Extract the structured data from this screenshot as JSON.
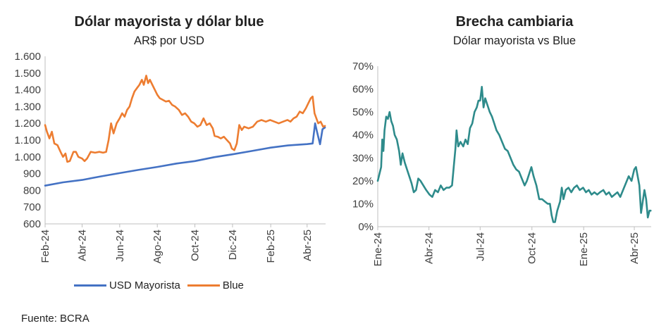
{
  "source": "Fuente: BCRA",
  "chart_data": [
    {
      "type": "line",
      "title": "Dólar mayorista y dólar blue",
      "subtitle": "AR$ por USD",
      "ylim": [
        600,
        1600
      ],
      "yticks": [
        "600",
        "700",
        "800",
        "900",
        "1.000",
        "1.100",
        "1.200",
        "1.300",
        "1.400",
        "1.500",
        "1.600"
      ],
      "xticks": [
        "Feb-24",
        "Abr-24",
        "Jun-24",
        "Ago-24",
        "Oct-24",
        "Dic-24",
        "Feb-25",
        "Abr-25"
      ],
      "xtick_dates": [
        "2024-02-01",
        "2024-04-01",
        "2024-06-01",
        "2024-08-01",
        "2024-10-01",
        "2024-12-01",
        "2025-02-01",
        "2025-04-01"
      ],
      "xlim": [
        "2024-02-01",
        "2025-05-01"
      ],
      "legend_position": "bottom",
      "series": [
        {
          "name": "USD Mayorista",
          "color": "#4472C4",
          "points": [
            [
              "2024-02-01",
              828
            ],
            [
              "2024-03-01",
              848
            ],
            [
              "2024-04-01",
              862
            ],
            [
              "2024-05-01",
              883
            ],
            [
              "2024-06-01",
              903
            ],
            [
              "2024-07-01",
              922
            ],
            [
              "2024-08-01",
              940
            ],
            [
              "2024-09-01",
              960
            ],
            [
              "2024-10-01",
              975
            ],
            [
              "2024-11-01",
              998
            ],
            [
              "2024-12-01",
              1015
            ],
            [
              "2025-01-01",
              1035
            ],
            [
              "2025-02-01",
              1055
            ],
            [
              "2025-03-01",
              1068
            ],
            [
              "2025-04-01",
              1076
            ],
            [
              "2025-04-10",
              1080
            ],
            [
              "2025-04-14",
              1200
            ],
            [
              "2025-04-17",
              1150
            ],
            [
              "2025-04-22",
              1075
            ],
            [
              "2025-04-26",
              1165
            ],
            [
              "2025-04-30",
              1175
            ]
          ]
        },
        {
          "name": "Blue",
          "color": "#ED7D31",
          "points": [
            [
              "2024-02-01",
              1190
            ],
            [
              "2024-02-04",
              1150
            ],
            [
              "2024-02-08",
              1110
            ],
            [
              "2024-02-12",
              1150
            ],
            [
              "2024-02-16",
              1080
            ],
            [
              "2024-02-21",
              1070
            ],
            [
              "2024-02-26",
              1030
            ],
            [
              "2024-03-01",
              1000
            ],
            [
              "2024-03-05",
              1020
            ],
            [
              "2024-03-08",
              970
            ],
            [
              "2024-03-12",
              975
            ],
            [
              "2024-03-18",
              1030
            ],
            [
              "2024-03-22",
              1030
            ],
            [
              "2024-03-26",
              1000
            ],
            [
              "2024-04-01",
              990
            ],
            [
              "2024-04-05",
              975
            ],
            [
              "2024-04-09",
              990
            ],
            [
              "2024-04-15",
              1030
            ],
            [
              "2024-04-22",
              1025
            ],
            [
              "2024-04-29",
              1030
            ],
            [
              "2024-05-05",
              1025
            ],
            [
              "2024-05-10",
              1030
            ],
            [
              "2024-05-14",
              1100
            ],
            [
              "2024-05-18",
              1200
            ],
            [
              "2024-05-22",
              1140
            ],
            [
              "2024-05-27",
              1200
            ],
            [
              "2024-06-01",
              1230
            ],
            [
              "2024-06-05",
              1260
            ],
            [
              "2024-06-09",
              1240
            ],
            [
              "2024-06-13",
              1280
            ],
            [
              "2024-06-17",
              1300
            ],
            [
              "2024-06-21",
              1350
            ],
            [
              "2024-06-25",
              1390
            ],
            [
              "2024-06-29",
              1410
            ],
            [
              "2024-07-03",
              1430
            ],
            [
              "2024-07-07",
              1460
            ],
            [
              "2024-07-10",
              1430
            ],
            [
              "2024-07-14",
              1485
            ],
            [
              "2024-07-17",
              1440
            ],
            [
              "2024-07-20",
              1460
            ],
            [
              "2024-07-24",
              1430
            ],
            [
              "2024-07-28",
              1400
            ],
            [
              "2024-08-01",
              1370
            ],
            [
              "2024-08-05",
              1350
            ],
            [
              "2024-08-10",
              1340
            ],
            [
              "2024-08-15",
              1330
            ],
            [
              "2024-08-20",
              1335
            ],
            [
              "2024-08-25",
              1310
            ],
            [
              "2024-08-30",
              1300
            ],
            [
              "2024-09-05",
              1280
            ],
            [
              "2024-09-10",
              1250
            ],
            [
              "2024-09-15",
              1260
            ],
            [
              "2024-09-20",
              1240
            ],
            [
              "2024-09-25",
              1210
            ],
            [
              "2024-09-30",
              1200
            ],
            [
              "2024-10-05",
              1180
            ],
            [
              "2024-10-10",
              1190
            ],
            [
              "2024-10-15",
              1230
            ],
            [
              "2024-10-20",
              1190
            ],
            [
              "2024-10-25",
              1200
            ],
            [
              "2024-10-30",
              1170
            ],
            [
              "2024-11-02",
              1125
            ],
            [
              "2024-11-07",
              1120
            ],
            [
              "2024-11-12",
              1110
            ],
            [
              "2024-11-17",
              1120
            ],
            [
              "2024-11-22",
              1100
            ],
            [
              "2024-11-27",
              1080
            ],
            [
              "2024-11-30",
              1050
            ],
            [
              "2024-12-04",
              1040
            ],
            [
              "2024-12-08",
              1080
            ],
            [
              "2024-12-12",
              1190
            ],
            [
              "2024-12-16",
              1160
            ],
            [
              "2024-12-20",
              1180
            ],
            [
              "2024-12-27",
              1170
            ],
            [
              "2025-01-03",
              1180
            ],
            [
              "2025-01-10",
              1210
            ],
            [
              "2025-01-17",
              1220
            ],
            [
              "2025-01-24",
              1210
            ],
            [
              "2025-01-31",
              1220
            ],
            [
              "2025-02-07",
              1210
            ],
            [
              "2025-02-14",
              1200
            ],
            [
              "2025-02-21",
              1210
            ],
            [
              "2025-02-28",
              1220
            ],
            [
              "2025-03-05",
              1210
            ],
            [
              "2025-03-10",
              1230
            ],
            [
              "2025-03-15",
              1240
            ],
            [
              "2025-03-20",
              1270
            ],
            [
              "2025-03-25",
              1260
            ],
            [
              "2025-03-30",
              1290
            ],
            [
              "2025-04-03",
              1320
            ],
            [
              "2025-04-07",
              1350
            ],
            [
              "2025-04-10",
              1360
            ],
            [
              "2025-04-13",
              1260
            ],
            [
              "2025-04-16",
              1230
            ],
            [
              "2025-04-19",
              1200
            ],
            [
              "2025-04-23",
              1210
            ],
            [
              "2025-04-27",
              1180
            ],
            [
              "2025-04-30",
              1185
            ]
          ]
        }
      ]
    },
    {
      "type": "line",
      "title": "Brecha cambiaria",
      "subtitle": "Dólar mayorista vs Blue",
      "ylim": [
        0,
        70
      ],
      "yticks": [
        "0%",
        "10%",
        "20%",
        "30%",
        "40%",
        "50%",
        "60%",
        "70%"
      ],
      "xticks": [
        "Ene-24",
        "Abr-24",
        "Jul-24",
        "Oct-24",
        "Ene-25",
        "Abr-25"
      ],
      "xtick_dates": [
        "2024-01-01",
        "2024-04-01",
        "2024-07-01",
        "2024-10-01",
        "2025-01-01",
        "2025-04-01"
      ],
      "xlim": [
        "2024-01-01",
        "2025-05-01"
      ],
      "series": [
        {
          "name": "",
          "color": "#2E8B8B",
          "points": [
            [
              "2024-01-01",
              20
            ],
            [
              "2024-01-04",
              23
            ],
            [
              "2024-01-07",
              26
            ],
            [
              "2024-01-09",
              38
            ],
            [
              "2024-01-11",
              33
            ],
            [
              "2024-01-13",
              42
            ],
            [
              "2024-01-16",
              48
            ],
            [
              "2024-01-19",
              47
            ],
            [
              "2024-01-22",
              50
            ],
            [
              "2024-01-25",
              46
            ],
            [
              "2024-01-28",
              44
            ],
            [
              "2024-01-31",
              40
            ],
            [
              "2024-02-04",
              38
            ],
            [
              "2024-02-08",
              33
            ],
            [
              "2024-02-11",
              27
            ],
            [
              "2024-02-14",
              32
            ],
            [
              "2024-02-18",
              28
            ],
            [
              "2024-02-22",
              25
            ],
            [
              "2024-02-26",
              22
            ],
            [
              "2024-03-01",
              19
            ],
            [
              "2024-03-05",
              15
            ],
            [
              "2024-03-09",
              16
            ],
            [
              "2024-03-13",
              21
            ],
            [
              "2024-03-17",
              20
            ],
            [
              "2024-03-22",
              18
            ],
            [
              "2024-03-27",
              16
            ],
            [
              "2024-04-02",
              14
            ],
            [
              "2024-04-07",
              13
            ],
            [
              "2024-04-12",
              16
            ],
            [
              "2024-04-17",
              15
            ],
            [
              "2024-04-22",
              18
            ],
            [
              "2024-04-27",
              16
            ],
            [
              "2024-05-02",
              17
            ],
            [
              "2024-05-07",
              17
            ],
            [
              "2024-05-12",
              18
            ],
            [
              "2024-05-15",
              26
            ],
            [
              "2024-05-18",
              34
            ],
            [
              "2024-05-20",
              42
            ],
            [
              "2024-05-23",
              35
            ],
            [
              "2024-05-27",
              37
            ],
            [
              "2024-06-01",
              35
            ],
            [
              "2024-06-05",
              38
            ],
            [
              "2024-06-09",
              36
            ],
            [
              "2024-06-13",
              43
            ],
            [
              "2024-06-17",
              45
            ],
            [
              "2024-06-21",
              50
            ],
            [
              "2024-06-25",
              52
            ],
            [
              "2024-06-28",
              55
            ],
            [
              "2024-07-01",
              55
            ],
            [
              "2024-07-04",
              61
            ],
            [
              "2024-07-07",
              52
            ],
            [
              "2024-07-10",
              56
            ],
            [
              "2024-07-14",
              53
            ],
            [
              "2024-07-18",
              50
            ],
            [
              "2024-07-22",
              48
            ],
            [
              "2024-07-26",
              45
            ],
            [
              "2024-07-30",
              42
            ],
            [
              "2024-08-04",
              40
            ],
            [
              "2024-08-09",
              37
            ],
            [
              "2024-08-14",
              34
            ],
            [
              "2024-08-19",
              33
            ],
            [
              "2024-08-24",
              30
            ],
            [
              "2024-08-29",
              27
            ],
            [
              "2024-09-03",
              25
            ],
            [
              "2024-09-08",
              24
            ],
            [
              "2024-09-13",
              21
            ],
            [
              "2024-09-18",
              18
            ],
            [
              "2024-09-22",
              20
            ],
            [
              "2024-09-26",
              23
            ],
            [
              "2024-09-30",
              26
            ],
            [
              "2024-10-04",
              22
            ],
            [
              "2024-10-09",
              18
            ],
            [
              "2024-10-14",
              12
            ],
            [
              "2024-10-19",
              12
            ],
            [
              "2024-10-24",
              11
            ],
            [
              "2024-10-29",
              10
            ],
            [
              "2024-11-02",
              10
            ],
            [
              "2024-11-05",
              5
            ],
            [
              "2024-11-08",
              2
            ],
            [
              "2024-11-11",
              2
            ],
            [
              "2024-11-15",
              7
            ],
            [
              "2024-11-20",
              11
            ],
            [
              "2024-11-23",
              17
            ],
            [
              "2024-11-26",
              12
            ],
            [
              "2024-11-30",
              16
            ],
            [
              "2024-12-05",
              17
            ],
            [
              "2024-12-10",
              15
            ],
            [
              "2024-12-15",
              17
            ],
            [
              "2024-12-20",
              18
            ],
            [
              "2024-12-25",
              16
            ],
            [
              "2024-12-31",
              17
            ],
            [
              "2025-01-05",
              15
            ],
            [
              "2025-01-10",
              16
            ],
            [
              "2025-01-15",
              14
            ],
            [
              "2025-01-20",
              15
            ],
            [
              "2025-01-25",
              14
            ],
            [
              "2025-01-30",
              15
            ],
            [
              "2025-02-05",
              16
            ],
            [
              "2025-02-10",
              14
            ],
            [
              "2025-02-15",
              15
            ],
            [
              "2025-02-20",
              13
            ],
            [
              "2025-02-25",
              14
            ],
            [
              "2025-03-02",
              15
            ],
            [
              "2025-03-07",
              13
            ],
            [
              "2025-03-12",
              16
            ],
            [
              "2025-03-17",
              19
            ],
            [
              "2025-03-22",
              22
            ],
            [
              "2025-03-27",
              20
            ],
            [
              "2025-04-01",
              25
            ],
            [
              "2025-04-04",
              26
            ],
            [
              "2025-04-07",
              22
            ],
            [
              "2025-04-10",
              18
            ],
            [
              "2025-04-13",
              6
            ],
            [
              "2025-04-16",
              11
            ],
            [
              "2025-04-19",
              16
            ],
            [
              "2025-04-22",
              12
            ],
            [
              "2025-04-25",
              4
            ],
            [
              "2025-04-28",
              7
            ],
            [
              "2025-04-30",
              7
            ]
          ]
        }
      ]
    }
  ]
}
